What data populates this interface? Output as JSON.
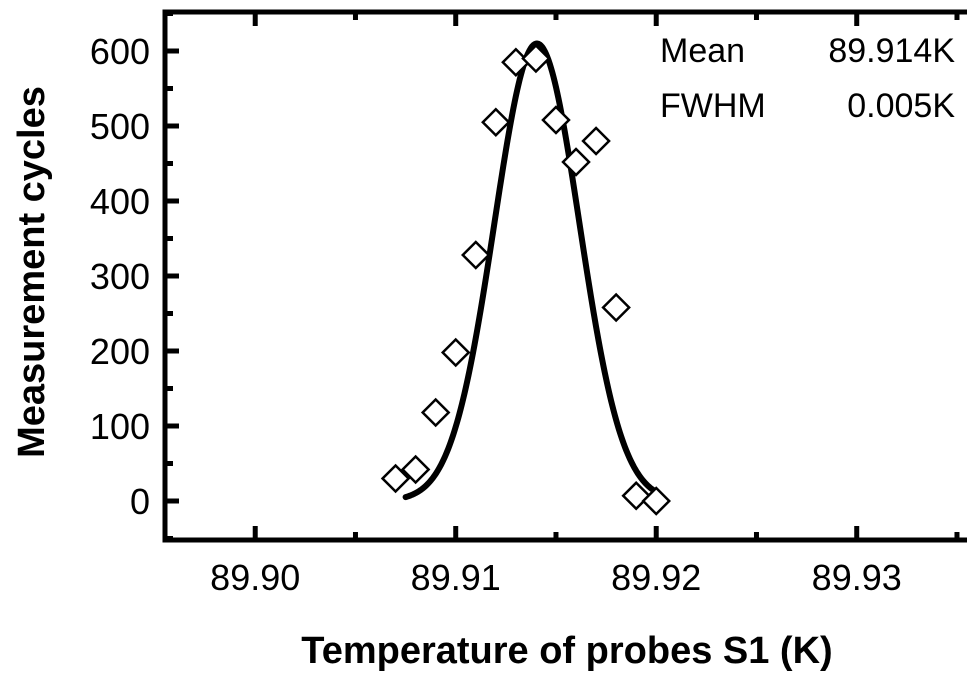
{
  "chart_data": {
    "type": "scatter",
    "xlabel": "Temperature of probes S1 (K)",
    "ylabel": "Measurement cycles",
    "xlim": [
      89.8955,
      89.9355
    ],
    "ylim": [
      -52,
      652
    ],
    "x_ticks": [
      "89.90",
      "89.91",
      "89.92",
      "89.93"
    ],
    "y_ticks": [
      "0",
      "100",
      "200",
      "300",
      "400",
      "500",
      "600"
    ],
    "x_tick_values": [
      89.9,
      89.91,
      89.92,
      89.93
    ],
    "y_tick_values": [
      0,
      100,
      200,
      300,
      400,
      500,
      600
    ],
    "x_minor_tick_values": [
      89.895,
      89.905,
      89.915,
      89.925,
      89.935
    ],
    "grid": false,
    "legend": "none",
    "annotations": [
      {
        "label": "Mean",
        "value": "89.914K"
      },
      {
        "label": "FWHM",
        "value": "0.005K"
      }
    ],
    "series": [
      {
        "type": "scatter",
        "marker": "diamond-open",
        "color": "#000000",
        "x": [
          89.907,
          89.908,
          89.909,
          89.91,
          89.911,
          89.912,
          89.913,
          89.914,
          89.915,
          89.916,
          89.917,
          89.918,
          89.919,
          89.92
        ],
        "y": [
          30,
          42,
          118,
          198,
          328,
          505,
          585,
          590,
          508,
          452,
          480,
          258,
          7,
          0
        ]
      },
      {
        "type": "line",
        "fit": "gaussian",
        "color": "#000000",
        "x_range": [
          89.9075,
          89.92
        ],
        "amplitude": 610,
        "center": 89.91405,
        "fwhm": 0.005
      }
    ]
  }
}
